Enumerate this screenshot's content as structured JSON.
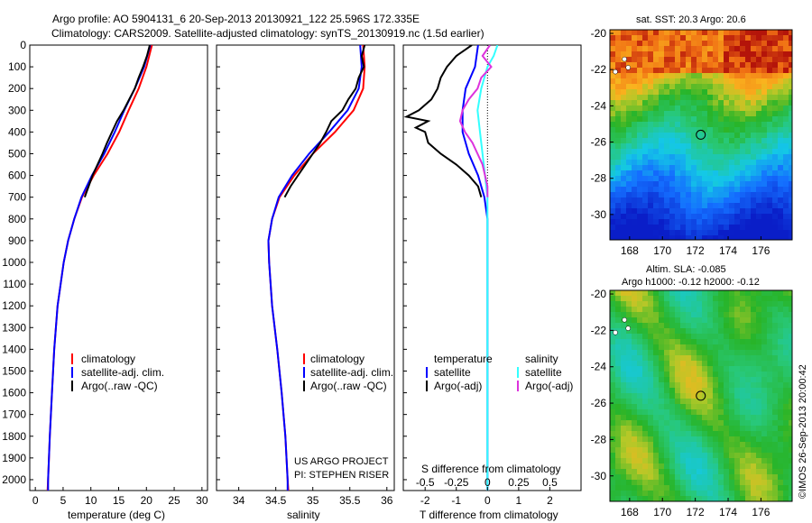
{
  "header": {
    "line1": "Argo profile: AO 5904131_6 20-Sep-2013 20130921_122 25.596S 172.335E",
    "line2": "Climatology: CARS2009. Satellite-adjusted climatology: synTS_20130919.nc (1.5d earlier)"
  },
  "colors": {
    "climatology": "#ff0000",
    "satellite": "#0000ff",
    "argo": "#000000",
    "sal_satellite": "#33ffff",
    "sal_argo": "#dd33dd"
  },
  "chart_data": [
    {
      "type": "line",
      "panel": "temperature",
      "xlabel": "temperature (deg C)",
      "xlim": [
        -1,
        31
      ],
      "xticks": [
        "0",
        "5",
        "10",
        "15",
        "20",
        "25",
        "30"
      ],
      "ylim": [
        0,
        2050
      ],
      "yticks": [
        "0",
        "100",
        "200",
        "300",
        "400",
        "500",
        "600",
        "700",
        "800",
        "900",
        "1000",
        "1100",
        "1200",
        "1300",
        "1400",
        "1500",
        "1600",
        "1700",
        "1800",
        "1900",
        "2000"
      ],
      "legend": [
        "climatology",
        "satellite-adj. clim.",
        "Argo(..raw -QC)"
      ],
      "series": [
        {
          "name": "climatology",
          "y": [
            0,
            100,
            200,
            300,
            400,
            500,
            600,
            700,
            800,
            900,
            1000,
            1200,
            1400,
            1600,
            1800,
            2000,
            2050
          ],
          "x": [
            21.0,
            20.0,
            18.6,
            16.8,
            15.1,
            13.0,
            10.5,
            8.4,
            7.0,
            5.9,
            5.1,
            4.0,
            3.4,
            3.0,
            2.6,
            2.3,
            2.2
          ]
        },
        {
          "name": "satellite-adj. clim.",
          "y": [
            0,
            100,
            200,
            300,
            400,
            500,
            600,
            700,
            800,
            900,
            1000,
            1200,
            1400,
            1600,
            1800,
            2000,
            2050
          ],
          "x": [
            20.7,
            19.6,
            17.9,
            16.0,
            14.3,
            12.4,
            10.2,
            8.3,
            7.0,
            5.9,
            5.1,
            4.0,
            3.4,
            3.0,
            2.6,
            2.3,
            2.3
          ]
        },
        {
          "name": "Argo(..raw -QC)",
          "y": [
            0,
            50,
            100,
            150,
            200,
            250,
            300,
            350,
            400,
            450,
            500,
            550,
            600,
            650,
            700
          ],
          "x": [
            20.6,
            20.1,
            19.4,
            18.6,
            17.9,
            16.9,
            15.9,
            14.7,
            13.8,
            12.9,
            12.1,
            11.2,
            10.3,
            9.6,
            8.9
          ]
        }
      ]
    },
    {
      "type": "line",
      "panel": "salinity",
      "xlabel": "salinity",
      "xlim": [
        33.7,
        36.1
      ],
      "xticks": [
        "34",
        "34.5",
        "35",
        "35.5",
        "36"
      ],
      "ylim": [
        0,
        2050
      ],
      "legend": [
        "climatology",
        "satellite-adj. clim.",
        "Argo(..raw -QC)"
      ],
      "annotation": [
        "US ARGO PROJECT",
        "PI: STEPHEN RISER"
      ],
      "series": [
        {
          "name": "climatology",
          "y": [
            0,
            100,
            200,
            300,
            400,
            500,
            600,
            700,
            800,
            900,
            1000,
            1200,
            1400,
            1600,
            1800,
            2000,
            2050
          ],
          "x": [
            35.68,
            35.7,
            35.68,
            35.55,
            35.3,
            35.0,
            34.75,
            34.55,
            34.45,
            34.4,
            34.41,
            34.45,
            34.52,
            34.58,
            34.63,
            34.66,
            34.67
          ]
        },
        {
          "name": "satellite-adj. clim.",
          "y": [
            0,
            100,
            200,
            300,
            400,
            500,
            600,
            700,
            800,
            900,
            1000,
            1200,
            1400,
            1600,
            1800,
            2000,
            2050
          ],
          "x": [
            35.64,
            35.66,
            35.62,
            35.47,
            35.22,
            34.95,
            34.72,
            34.54,
            34.45,
            34.4,
            34.41,
            34.45,
            34.52,
            34.58,
            34.63,
            34.66,
            34.66
          ]
        },
        {
          "name": "Argo(..raw -QC)",
          "y": [
            0,
            50,
            100,
            150,
            200,
            250,
            300,
            350,
            400,
            450,
            500,
            550,
            600,
            650,
            700
          ],
          "x": [
            35.7,
            35.66,
            35.69,
            35.62,
            35.58,
            35.48,
            35.4,
            35.25,
            35.18,
            35.1,
            35.0,
            34.9,
            34.8,
            34.7,
            34.62
          ]
        }
      ]
    },
    {
      "type": "line",
      "panel": "difference",
      "xlabel": "T difference from climatology",
      "xlabel_top": "S difference from climatology",
      "xticks_bottom": [
        "-2",
        "-1",
        "0",
        "1",
        "2"
      ],
      "xticks_top": [
        "-0.5",
        "-0.25",
        "0",
        "0.25",
        "0.5"
      ],
      "xlim": [
        -2.7,
        3.0
      ],
      "ylim": [
        0,
        2050
      ],
      "legend_left_title": "temperature",
      "legend_left": [
        "satellite",
        "Argo(-adj)"
      ],
      "legend_right_title": "salinity",
      "legend_right": [
        "satellite",
        "Argo(-adj)"
      ],
      "series": [
        {
          "name": "temperature satellite",
          "y": [
            0,
            100,
            200,
            300,
            400,
            500,
            600,
            700,
            800,
            900,
            1000,
            1100,
            1200,
            1400,
            1600,
            1800,
            2000,
            2050
          ],
          "x": [
            -0.3,
            -0.4,
            -0.7,
            -0.8,
            -0.8,
            -0.6,
            -0.3,
            -0.1,
            0.0,
            0.0,
            0.0,
            0.0,
            0.0,
            0.0,
            0.0,
            0.0,
            0.0,
            0.0
          ]
        },
        {
          "name": "temperature Argo(-adj)",
          "y": [
            0,
            50,
            100,
            150,
            200,
            250,
            300,
            330,
            350,
            380,
            400,
            450,
            500,
            550,
            600,
            650,
            700
          ],
          "x": [
            -0.5,
            -1.0,
            -1.3,
            -1.5,
            -1.6,
            -1.8,
            -2.2,
            -2.6,
            -1.9,
            -2.3,
            -2.0,
            -1.9,
            -1.5,
            -1.0,
            -0.6,
            -0.3,
            -0.2
          ]
        },
        {
          "name": "salinity satellite",
          "y": [
            0,
            50,
            100,
            200,
            300,
            400,
            500,
            600,
            700,
            800,
            1000,
            1200,
            1500,
            1800,
            2000,
            2050
          ],
          "x": [
            0.08,
            0.05,
            0.0,
            -0.05,
            -0.08,
            -0.06,
            -0.04,
            -0.02,
            0.0,
            0.0,
            0.0,
            0.0,
            0.0,
            0.0,
            0.0,
            0.0
          ]
        },
        {
          "name": "salinity Argo(-adj)",
          "y": [
            0,
            50,
            100,
            150,
            200,
            250,
            300,
            350,
            400,
            450,
            500,
            550,
            600,
            650,
            700
          ],
          "x": [
            0.02,
            -0.04,
            0.03,
            -0.05,
            -0.08,
            -0.15,
            -0.2,
            -0.22,
            -0.18,
            -0.12,
            -0.08,
            -0.04,
            -0.02,
            0.0,
            0.0
          ]
        }
      ]
    },
    {
      "type": "heatmap",
      "panel": "sst_map",
      "title": "sat. SST: 20.3 Argo: 20.6",
      "xticks": [
        "168",
        "170",
        "172",
        "174",
        "176"
      ],
      "yticks": [
        "-20",
        "-22",
        "-24",
        "-26",
        "-28",
        "-30"
      ],
      "xlim": [
        166.8,
        177.9
      ],
      "ylim": [
        -31.4,
        -19.8
      ],
      "marker": {
        "lon": 172.335,
        "lat": -25.596
      }
    },
    {
      "type": "heatmap",
      "panel": "sla_map",
      "title": "Altim. SLA: -0.085",
      "subtitle": "Argo h1000: -0.12 h2000: -0.12",
      "xticks": [
        "168",
        "170",
        "172",
        "174",
        "176"
      ],
      "yticks": [
        "-20",
        "-22",
        "-24",
        "-26",
        "-28",
        "-30"
      ],
      "xlim": [
        166.8,
        177.9
      ],
      "ylim": [
        -31.4,
        -19.8
      ],
      "marker": {
        "lon": 172.335,
        "lat": -25.596
      }
    }
  ],
  "footer": {
    "imos": "©IMOS 26-Sep-2013 20:00:42"
  }
}
